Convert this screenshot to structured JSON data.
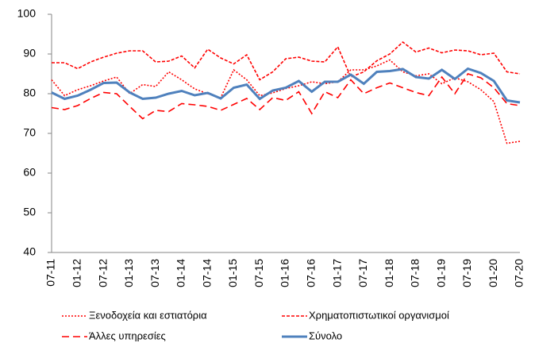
{
  "chart_data": {
    "type": "line",
    "categories": [
      "07-11",
      null,
      "01-12",
      null,
      "07-12",
      null,
      "01-13",
      null,
      "07-13",
      null,
      "01-14",
      null,
      "07-14",
      null,
      "01-15",
      null,
      "07-15",
      null,
      "01-16",
      null,
      "07-16",
      null,
      "01-17",
      null,
      "07-17",
      null,
      "01-18",
      null,
      "07-18",
      null,
      "01-19",
      null,
      "07-19",
      null,
      "01-20",
      null,
      "07-20"
    ],
    "ylim": [
      40,
      100
    ],
    "yticks": [
      40,
      50,
      60,
      70,
      80,
      90,
      100
    ],
    "grid": false,
    "series": [
      {
        "name": "Ξενοδοχεία και εστιατόρια",
        "color": "#ff0000",
        "dash": "dotted",
        "values": [
          83.5,
          79.5,
          81,
          82,
          83.2,
          84.2,
          80,
          82.3,
          81.8,
          85.5,
          83.5,
          81.2,
          80,
          79,
          86,
          83.5,
          79.5,
          80.2,
          81.3,
          82,
          83,
          82.5,
          83,
          86,
          86,
          87,
          88.5,
          85.5,
          84.5,
          85,
          82.5,
          84,
          83,
          81,
          78,
          67.5,
          68
        ]
      },
      {
        "name": "Χρηματοπιστωτικοί οργανισμοί",
        "color": "#ff0000",
        "dash": "short-dash",
        "values": [
          87.8,
          87.8,
          86.3,
          88,
          89.2,
          90.2,
          90.8,
          90.8,
          88,
          88.2,
          89.5,
          86.5,
          91.2,
          89,
          87.5,
          89.8,
          83.5,
          85.5,
          88.8,
          89.2,
          88.2,
          88,
          91.8,
          84.2,
          85.5,
          88.3,
          90,
          93,
          90.5,
          91.5,
          90.3,
          91,
          90.8,
          89.8,
          90.2,
          85.5,
          85
        ]
      },
      {
        "name": "Άλλες υπηρεσίες",
        "color": "#ff0000",
        "dash": "long-dash",
        "values": [
          76.5,
          76,
          77,
          78.8,
          80.3,
          80,
          76.8,
          73.7,
          75.8,
          75.5,
          77.5,
          77.2,
          76.8,
          75.8,
          77.3,
          78.8,
          76,
          79,
          78.3,
          80.5,
          75,
          80.5,
          79,
          83.5,
          80,
          81.5,
          82.7,
          81.5,
          80.3,
          79.5,
          84.2,
          80,
          85,
          84,
          81.5,
          77.5,
          77
        ]
      },
      {
        "name": "Σύνολο",
        "color": "#4f81bd",
        "dash": "solid",
        "values": [
          80.3,
          78.7,
          79.5,
          81,
          82.7,
          82.8,
          80.3,
          78.7,
          79,
          80,
          80.7,
          79.6,
          80.2,
          78.8,
          81.5,
          82.3,
          78.7,
          80.8,
          81.5,
          83.2,
          80.5,
          83,
          83,
          84.8,
          82.5,
          85.5,
          85.7,
          86.2,
          84.2,
          83.8,
          86,
          83.7,
          86.3,
          85.2,
          83.2,
          78.3,
          77.8
        ]
      }
    ]
  }
}
